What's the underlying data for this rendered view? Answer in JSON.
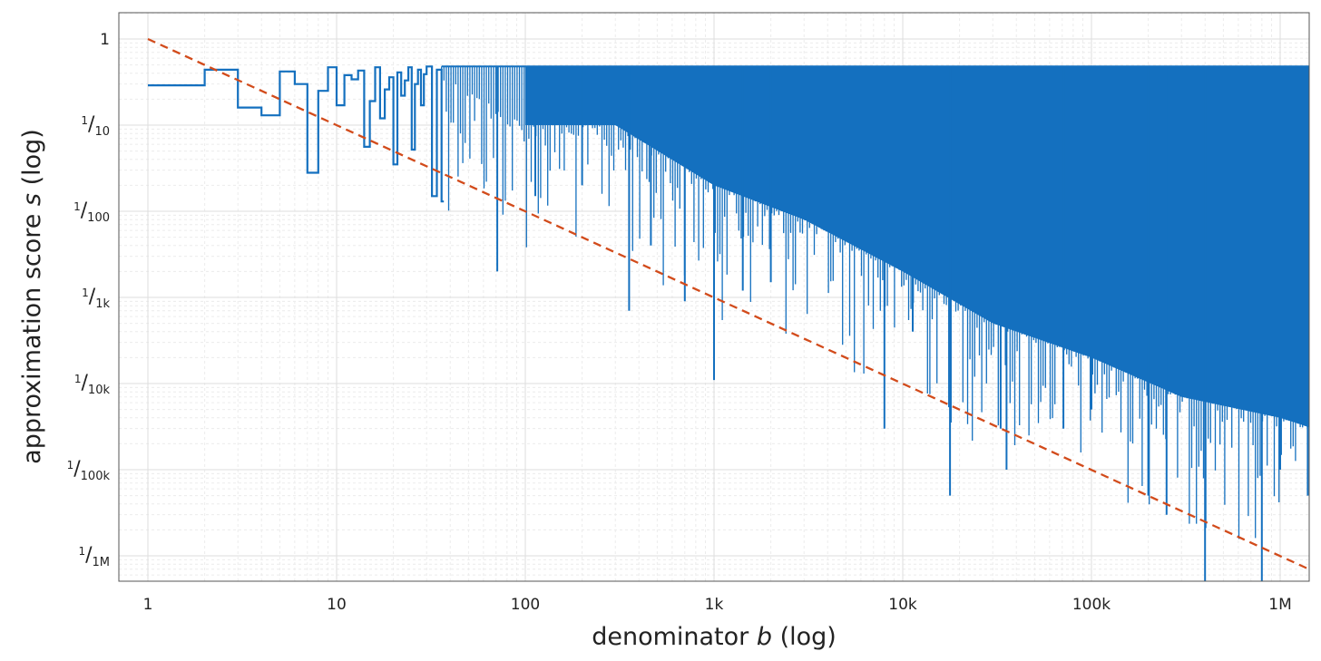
{
  "chart_data": {
    "type": "line",
    "title": "",
    "x_axis": {
      "label_parts": [
        "denominator ",
        "b",
        " (log)"
      ],
      "scale": "log",
      "range": [
        1,
        1500000
      ],
      "ticks": [
        {
          "value": 1,
          "label": "1"
        },
        {
          "value": 10,
          "label": "10"
        },
        {
          "value": 100,
          "label": "100"
        },
        {
          "value": 1000,
          "label": "1k"
        },
        {
          "value": 10000,
          "label": "10k"
        },
        {
          "value": 100000,
          "label": "100k"
        },
        {
          "value": 1000000,
          "label": "1M"
        }
      ]
    },
    "y_axis": {
      "label_parts": [
        "approximation score ",
        "s",
        " (log)"
      ],
      "scale": "log",
      "range": [
        5e-07,
        2
      ],
      "ticks": [
        {
          "value": 1,
          "num": "",
          "den": "1"
        },
        {
          "value": 0.1,
          "num": "1",
          "den": "10"
        },
        {
          "value": 0.01,
          "num": "1",
          "den": "100"
        },
        {
          "value": 0.001,
          "num": "1",
          "den": "1k"
        },
        {
          "value": 0.0001,
          "num": "1",
          "den": "10k"
        },
        {
          "value": 1e-05,
          "num": "1",
          "den": "100k"
        },
        {
          "value": 1e-06,
          "num": "1",
          "den": "1M"
        }
      ]
    },
    "grid": true,
    "series": [
      {
        "style": "step",
        "color": "#1470bf",
        "points": [
          [
            1,
            0.29
          ],
          [
            2,
            0.44
          ],
          [
            3,
            0.16
          ],
          [
            4,
            0.13
          ],
          [
            5,
            0.42
          ],
          [
            6,
            0.3
          ],
          [
            7,
            0.028
          ],
          [
            8,
            0.25
          ],
          [
            9,
            0.47
          ],
          [
            10,
            0.17
          ],
          [
            11,
            0.38
          ],
          [
            12,
            0.34
          ],
          [
            13,
            0.43
          ],
          [
            14,
            0.056
          ],
          [
            15,
            0.19
          ],
          [
            16,
            0.47
          ],
          [
            17,
            0.12
          ],
          [
            18,
            0.26
          ],
          [
            19,
            0.36
          ],
          [
            20,
            0.035
          ],
          [
            21,
            0.41
          ],
          [
            22,
            0.22
          ],
          [
            23,
            0.33
          ],
          [
            24,
            0.47
          ],
          [
            25,
            0.052
          ],
          [
            26,
            0.3
          ],
          [
            27,
            0.44
          ],
          [
            28,
            0.17
          ],
          [
            29,
            0.39
          ],
          [
            30,
            0.48
          ],
          [
            32,
            0.015
          ],
          [
            34,
            0.44
          ],
          [
            36,
            0.013
          ]
        ]
      },
      {
        "style": "spikes",
        "color": "#1470bf",
        "ceiling": 0.48,
        "fill_until": 1500000,
        "dense_from": 100,
        "envelope": [
          [
            30,
            0.48
          ],
          [
            100,
            0.1
          ],
          [
            300,
            0.1
          ],
          [
            1000,
            0.02
          ],
          [
            3000,
            0.008
          ],
          [
            10000,
            0.002
          ],
          [
            30000,
            0.0005
          ],
          [
            100000,
            0.0002
          ],
          [
            300000,
            7e-05
          ],
          [
            1000000,
            4e-05
          ],
          [
            1500000,
            3e-05
          ]
        ],
        "deep_minima": [
          [
            71,
            0.002
          ],
          [
            113,
            0.015
          ],
          [
            200,
            0.02
          ],
          [
            355,
            0.0007
          ],
          [
            463,
            0.004
          ],
          [
            700,
            0.0009
          ],
          [
            1000,
            0.00011
          ],
          [
            1420,
            0.0012
          ],
          [
            2000,
            0.0015
          ],
          [
            8000,
            3e-05
          ],
          [
            11300,
            0.0004
          ],
          [
            17800,
            5e-06
          ],
          [
            33000,
            3e-05
          ],
          [
            35500,
            1e-05
          ],
          [
            71000,
            3e-05
          ],
          [
            100000,
            5e-05
          ],
          [
            200000,
            5e-06
          ],
          [
            250000,
            3e-06
          ],
          [
            400000,
            5e-07
          ],
          [
            800000,
            5e-07
          ],
          [
            1000000,
            1e-05
          ],
          [
            1400000,
            5e-06
          ]
        ]
      },
      {
        "style": "dashed",
        "color": "#d24b1b",
        "points": [
          [
            1,
            1
          ],
          [
            1400000,
            7.1e-07
          ]
        ]
      }
    ]
  }
}
